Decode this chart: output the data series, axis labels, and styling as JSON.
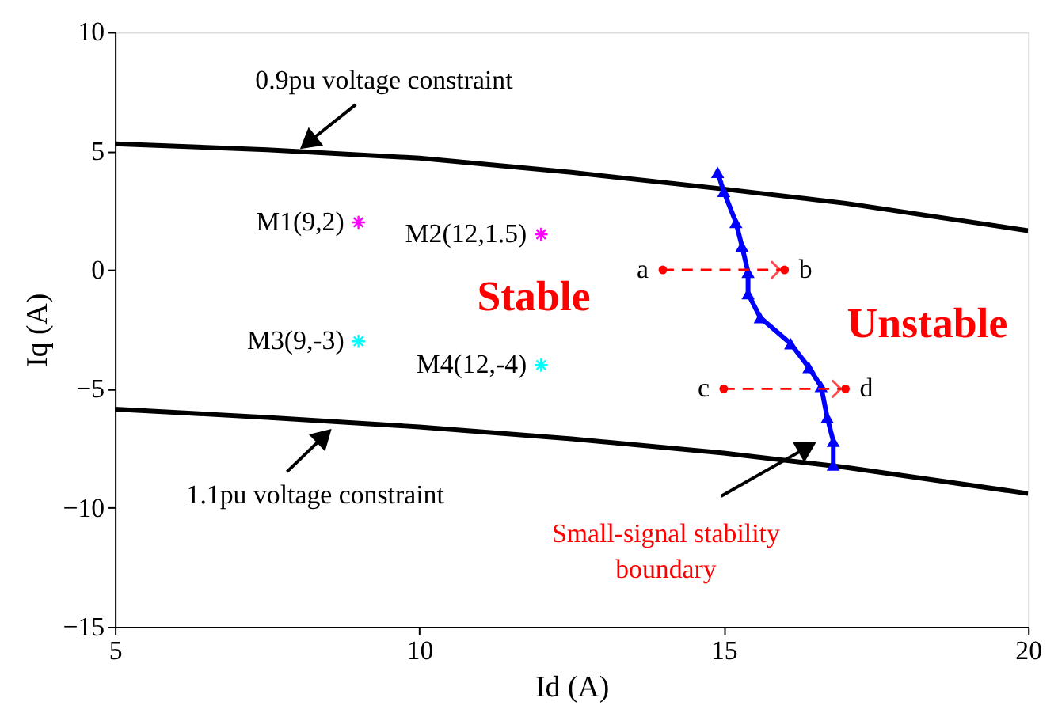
{
  "chart_data": {
    "type": "line",
    "xlabel": "Id (A)",
    "ylabel": "Iq (A)",
    "xlim": [
      5,
      20
    ],
    "ylim": [
      -15,
      10
    ],
    "xticks": [
      5,
      10,
      15,
      20
    ],
    "yticks": [
      -15,
      -10,
      -5,
      0,
      5,
      10
    ],
    "grid": false,
    "series": [
      {
        "color": "#000000",
        "marker": "none",
        "x": [
          5,
          7.5,
          10,
          12.5,
          15,
          17,
          20
        ],
        "values": [
          5.3,
          5.05,
          4.7,
          4.1,
          3.4,
          2.8,
          1.65
        ]
      },
      {
        "color": "#000000",
        "marker": "none",
        "x": [
          5,
          7.5,
          10,
          12.5,
          15,
          17,
          20
        ],
        "values": [
          -5.85,
          -6.2,
          -6.6,
          -7.1,
          -7.7,
          -8.3,
          -9.4
        ]
      },
      {
        "color": "#0000ff",
        "marker": "triangle",
        "x": [
          14.9,
          15.0,
          15.2,
          15.3,
          15.4,
          15.4,
          15.6,
          16.1,
          16.4,
          16.6,
          16.7,
          16.8,
          16.8
        ],
        "values": [
          4.1,
          3.3,
          2.0,
          1.0,
          -0.1,
          -1.0,
          -2.0,
          -3.1,
          -4.1,
          -4.9,
          -6.2,
          -7.2,
          -8.2
        ]
      },
      {
        "type": "scatter",
        "color": "#ff00ff",
        "marker": "cross",
        "x": [
          9,
          12
        ],
        "values": [
          2,
          1.5
        ]
      },
      {
        "type": "scatter",
        "color": "#00ffff",
        "marker": "cross",
        "x": [
          9,
          12
        ],
        "values": [
          -3,
          -4
        ]
      },
      {
        "color": "#ff0000",
        "marker": "circle",
        "line_style": "dashed",
        "x": [
          14,
          16
        ],
        "values": [
          0,
          0
        ]
      },
      {
        "color": "#ff0000",
        "marker": "circle",
        "line_style": "dashed",
        "x": [
          15,
          17
        ],
        "values": [
          -5,
          -5
        ]
      }
    ],
    "annotations": [
      {
        "text": "0.9pu voltage constraint",
        "x": 8.05,
        "y": 5.1
      },
      {
        "text": "1.1pu voltage constraint",
        "x": 8.55,
        "y": -6.7
      },
      "Small-signal stability boundary",
      "Stable",
      "Unstable",
      {
        "text": "M1(9,2)",
        "x": 9,
        "y": 2
      },
      {
        "text": "M2(12,1.5)",
        "x": 12,
        "y": 1.5
      },
      {
        "text": "M3(9,-3)",
        "x": 9,
        "y": -3
      },
      {
        "text": "M4(12,-4)",
        "x": 12,
        "y": -4
      },
      {
        "text": "a",
        "x": 14,
        "y": 0
      },
      {
        "text": "b",
        "x": 16,
        "y": 0
      },
      {
        "text": "c",
        "x": 15,
        "y": -5
      },
      {
        "text": "d",
        "x": 17,
        "y": -5
      }
    ]
  }
}
